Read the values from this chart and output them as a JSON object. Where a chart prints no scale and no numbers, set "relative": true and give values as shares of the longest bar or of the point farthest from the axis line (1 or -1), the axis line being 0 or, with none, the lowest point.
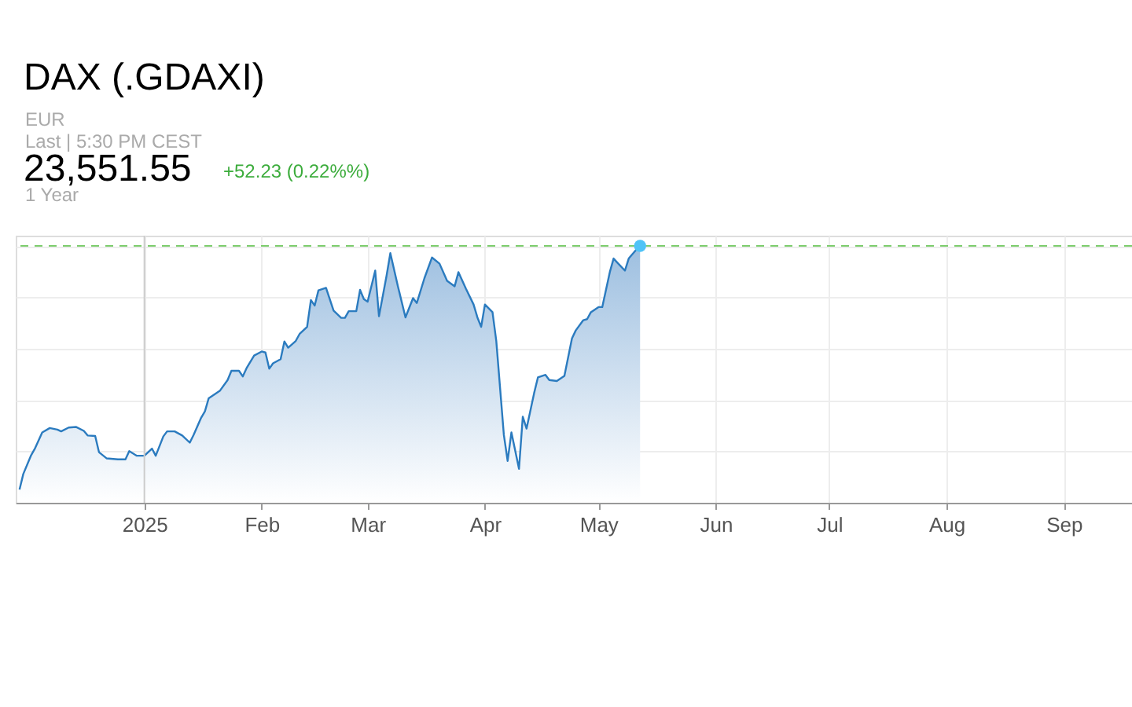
{
  "chart_data": {
    "type": "area",
    "title": "DAX (.GDAXI)",
    "annotations": [
      "EUR",
      "Last | 5:30 PM CEST",
      "23,551.55",
      "+52.23 (0.22%%)",
      "1 Year"
    ],
    "relative": true,
    "grid": true,
    "xlim": [
      "2024-11-28",
      "2025-09-19"
    ],
    "xticks": [
      {
        "value": "2025-01-01",
        "label": "2025"
      },
      {
        "value": "2025-02-01",
        "label": "Feb"
      },
      {
        "value": "2025-03-01",
        "label": "Mar"
      },
      {
        "value": "2025-04-01",
        "label": "Apr"
      },
      {
        "value": "2025-05-01",
        "label": "May"
      },
      {
        "value": "2025-06-01",
        "label": "Jun"
      },
      {
        "value": "2025-07-01",
        "label": "Jul"
      },
      {
        "value": "2025-08-01",
        "label": "Aug"
      },
      {
        "value": "2025-09-01",
        "label": "Sep"
      }
    ],
    "ref_lines": [
      {
        "axis": "y",
        "value": 1.0,
        "color": "#7ccc6c",
        "line_style": "dashed"
      },
      {
        "axis": "x",
        "value": "2025-01-01",
        "color": "#cccccc",
        "line_style": "solid"
      }
    ],
    "series": [
      {
        "color": "#2b7bbf",
        "x": [
          "2024-11-29",
          "2024-11-30",
          "2024-12-02",
          "2024-12-03",
          "2024-12-05",
          "2024-12-07",
          "2024-12-09",
          "2024-12-10",
          "2024-12-12",
          "2024-12-14",
          "2024-12-16",
          "2024-12-17",
          "2024-12-19",
          "2024-12-20",
          "2024-12-22",
          "2024-12-25",
          "2024-12-27",
          "2024-12-28",
          "2024-12-30",
          "2025-01-01",
          "2025-01-03",
          "2025-01-04",
          "2025-01-06",
          "2025-01-07",
          "2025-01-09",
          "2025-01-11",
          "2025-01-13",
          "2025-01-14",
          "2025-01-16",
          "2025-01-17",
          "2025-01-18",
          "2025-01-20",
          "2025-01-21",
          "2025-01-23",
          "2025-01-24",
          "2025-01-26",
          "2025-01-27",
          "2025-01-28",
          "2025-01-30",
          "2025-02-01",
          "2025-02-02",
          "2025-02-03",
          "2025-02-04",
          "2025-02-06",
          "2025-02-07",
          "2025-02-08",
          "2025-02-10",
          "2025-02-11",
          "2025-02-13",
          "2025-02-14",
          "2025-02-15",
          "2025-02-16",
          "2025-02-18",
          "2025-02-20",
          "2025-02-22",
          "2025-02-23",
          "2025-02-24",
          "2025-02-26",
          "2025-02-27",
          "2025-02-28",
          "2025-03-01",
          "2025-03-03",
          "2025-03-04",
          "2025-03-06",
          "2025-03-07",
          "2025-03-09",
          "2025-03-11",
          "2025-03-13",
          "2025-03-14",
          "2025-03-16",
          "2025-03-18",
          "2025-03-20",
          "2025-03-22",
          "2025-03-24",
          "2025-03-25",
          "2025-03-27",
          "2025-03-29",
          "2025-03-30",
          "2025-03-31",
          "2025-04-01",
          "2025-04-03",
          "2025-04-04",
          "2025-04-05",
          "2025-04-06",
          "2025-04-07",
          "2025-04-08",
          "2025-04-10",
          "2025-04-11",
          "2025-04-12",
          "2025-04-14",
          "2025-04-15",
          "2025-04-17",
          "2025-04-18",
          "2025-04-20",
          "2025-04-22",
          "2025-04-24",
          "2025-04-25",
          "2025-04-27",
          "2025-04-28",
          "2025-04-29",
          "2025-05-01",
          "2025-05-02",
          "2025-05-04",
          "2025-05-05",
          "2025-05-06",
          "2025-05-08",
          "2025-05-09",
          "2025-05-11",
          "2025-05-12"
        ],
        "values": [
          0.051,
          0.112,
          0.183,
          0.209,
          0.274,
          0.291,
          0.285,
          0.278,
          0.293,
          0.295,
          0.28,
          0.262,
          0.26,
          0.197,
          0.173,
          0.169,
          0.169,
          0.201,
          0.183,
          0.183,
          0.211,
          0.183,
          0.258,
          0.278,
          0.278,
          0.262,
          0.234,
          0.264,
          0.331,
          0.356,
          0.407,
          0.427,
          0.437,
          0.478,
          0.514,
          0.514,
          0.492,
          0.524,
          0.573,
          0.589,
          0.585,
          0.522,
          0.543,
          0.559,
          0.628,
          0.604,
          0.63,
          0.657,
          0.685,
          0.789,
          0.768,
          0.827,
          0.837,
          0.748,
          0.72,
          0.72,
          0.746,
          0.746,
          0.829,
          0.793,
          0.783,
          0.904,
          0.726,
          0.884,
          0.972,
          0.843,
          0.722,
          0.797,
          0.778,
          0.874,
          0.955,
          0.931,
          0.864,
          0.843,
          0.898,
          0.833,
          0.772,
          0.722,
          0.685,
          0.772,
          0.742,
          0.63,
          0.447,
          0.264,
          0.163,
          0.274,
          0.132,
          0.335,
          0.289,
          0.427,
          0.488,
          0.498,
          0.478,
          0.474,
          0.494,
          0.64,
          0.671,
          0.711,
          0.715,
          0.742,
          0.762,
          0.762,
          0.898,
          0.951,
          0.935,
          0.904,
          0.951,
          0.986,
          1.0
        ]
      },
      {
        "type": "scatter",
        "color": "#4fc3f7",
        "marker": "circle",
        "x": [
          "2025-05-12"
        ],
        "values": [
          1.0
        ]
      }
    ]
  }
}
